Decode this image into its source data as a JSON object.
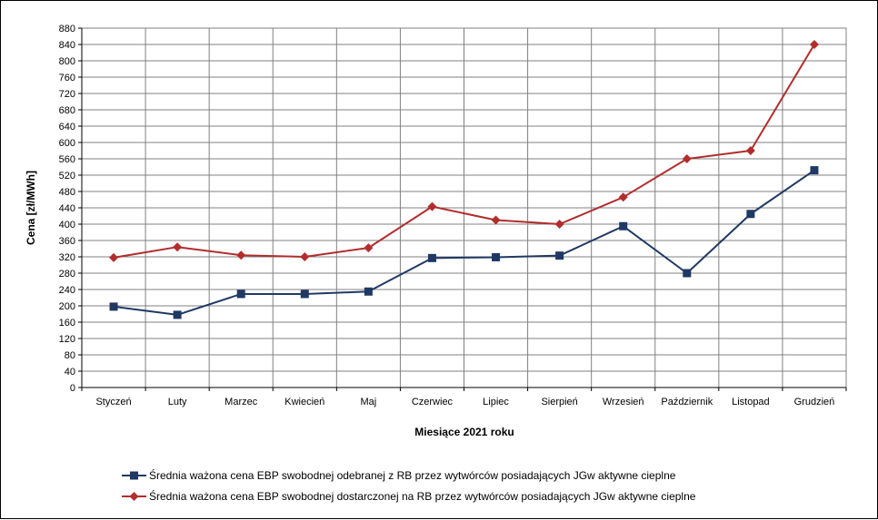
{
  "chart_data": {
    "type": "line",
    "title": "",
    "xlabel": "Miesiące 2021  roku",
    "ylabel": "Cena [zł/MWh]",
    "ylim": [
      0,
      880
    ],
    "ytick_step": 40,
    "grid": true,
    "legend_position": "bottom",
    "categories": [
      "Styczeń",
      "Luty",
      "Marzec",
      "Kwiecień",
      "Maj",
      "Czerwiec",
      "Lipiec",
      "Sierpień",
      "Wrzesień",
      "Październik",
      "Listopad",
      "Grudzień"
    ],
    "series": [
      {
        "name": "Średnia ważona cena EBP swobodnej odebranej z RB przez wytwórców posiadających JGw aktywne cieplne",
        "color": "#1f3864",
        "marker": "square",
        "values": [
          198,
          178,
          229,
          229,
          235,
          317,
          319,
          323,
          395,
          280,
          425,
          532
        ]
      },
      {
        "name": "Średnia ważona cena EBP swobodnej dostarczonej na RB przez wytwórców posiadających JGw aktywne cieplne",
        "color": "#b22d2d",
        "marker": "diamond",
        "values": [
          318,
          344,
          324,
          320,
          342,
          443,
          410,
          400,
          466,
          560,
          580,
          840
        ]
      }
    ]
  }
}
